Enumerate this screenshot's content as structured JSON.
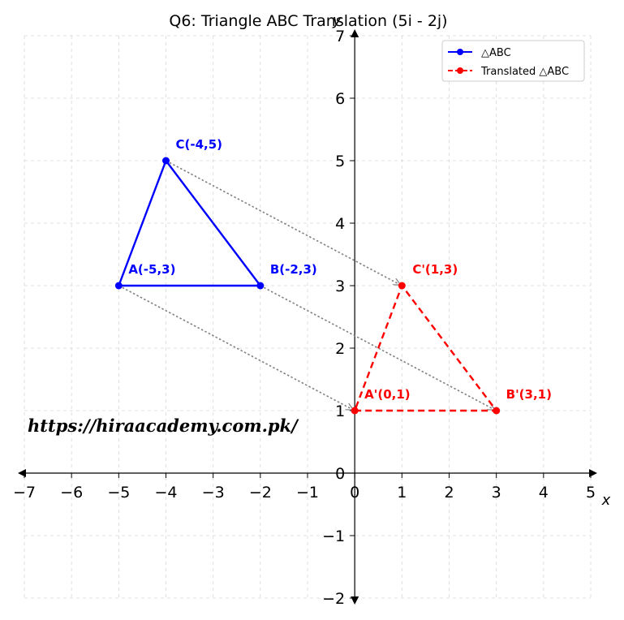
{
  "chart_data": {
    "type": "line",
    "title": "Q6: Triangle ABC Translation (5i - 2j)",
    "xlabel": "x",
    "ylabel": "y",
    "xlim": [
      -7,
      5
    ],
    "ylim": [
      -2,
      7
    ],
    "x_ticks": [
      "−7",
      "−6",
      "−5",
      "−4",
      "−3",
      "−2",
      "−1",
      "0",
      "1",
      "2",
      "3",
      "4",
      "5"
    ],
    "y_ticks": [
      "−2",
      "−1",
      "0",
      "1",
      "2",
      "3",
      "4",
      "5",
      "6",
      "7"
    ],
    "grid": true,
    "legend_position": "top-right",
    "series": [
      {
        "name": "△ABC",
        "color": "#0000ff",
        "line_style": "solid",
        "points": [
          {
            "x": -5,
            "y": 3,
            "label": "A(-5,3)"
          },
          {
            "x": -2,
            "y": 3,
            "label": "B(-2,3)"
          },
          {
            "x": -4,
            "y": 5,
            "label": "C(-4,5)"
          }
        ]
      },
      {
        "name": "Translated △ABC",
        "color": "#ff0000",
        "line_style": "dashed",
        "points": [
          {
            "x": 0,
            "y": 1,
            "label": "A'(0,1)"
          },
          {
            "x": 3,
            "y": 1,
            "label": "B'(3,1)"
          },
          {
            "x": 1,
            "y": 3,
            "label": "C'(1,3)"
          }
        ]
      }
    ],
    "translation_arrows": [
      {
        "from": [
          -5,
          3
        ],
        "to": [
          0,
          1
        ]
      },
      {
        "from": [
          -2,
          3
        ],
        "to": [
          3,
          1
        ]
      },
      {
        "from": [
          -4,
          5
        ],
        "to": [
          1,
          3
        ]
      }
    ],
    "arrow_color": "#808080",
    "watermark": "https://hiraacademy.com.pk/"
  }
}
